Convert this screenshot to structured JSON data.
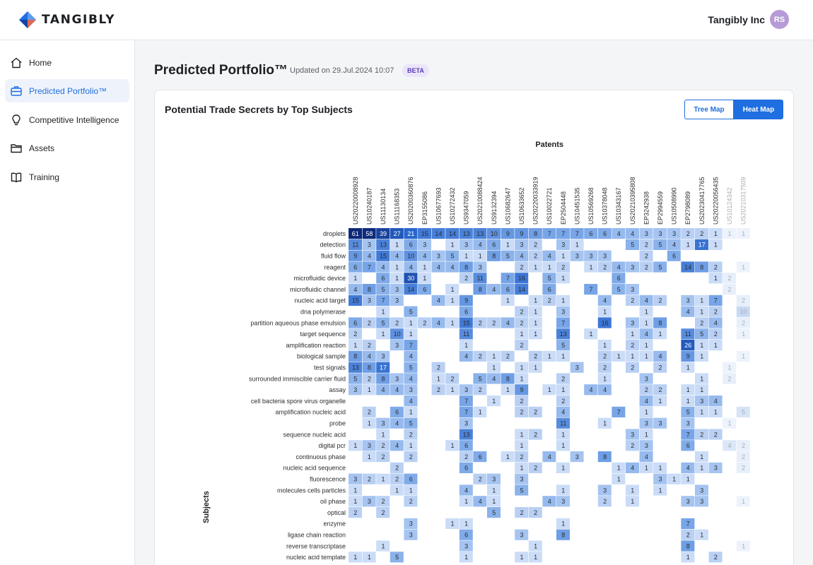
{
  "brand": {
    "name": "TANGIBLY"
  },
  "account": {
    "company": "Tangibly Inc",
    "initials": "RS"
  },
  "sidebar": {
    "items": [
      {
        "label": "Home",
        "icon": "home-icon"
      },
      {
        "label": "Predicted Portfolio™",
        "icon": "briefcase-icon",
        "active": true
      },
      {
        "label": "Competitive Intelligence",
        "icon": "lightbulb-icon"
      },
      {
        "label": "Assets",
        "icon": "folder-icon"
      },
      {
        "label": "Training",
        "icon": "book-icon"
      }
    ]
  },
  "page": {
    "title": "Predicted Portfolio™",
    "updated": "Updated on 29.Jul.2024 10:07",
    "badge": "BETA"
  },
  "card": {
    "title": "Potential Trade Secrets by Top Subjects",
    "toggle": {
      "tree_map": "Tree Map",
      "heat_map": "Heat Map",
      "selected": "Heat Map"
    }
  },
  "colors": {
    "accent": "#1f6fe0",
    "heat_low": "#e6eefb",
    "heat_high": "#0f3d8f"
  },
  "chart_data": {
    "type": "heatmap",
    "xlabel": "Patents",
    "ylabel": "Subjects",
    "x": [
      "US20220008928",
      "US10240187",
      "US11130134",
      "US11168353",
      "US20200360876",
      "EP3155086",
      "US10677693",
      "US10272432",
      "US9347059",
      "US20210088424",
      "US9132394",
      "US10682647",
      "US10633652",
      "US20220033919",
      "US10022721",
      "EP2504448",
      "US10451535",
      "US10569268",
      "US10378048",
      "US10343167",
      "US20210395808",
      "EP3242938",
      "EP2994559",
      "US10508990",
      "EP2798089",
      "US20230417765",
      "US20220056435",
      "US10124342",
      "US20210317509"
    ],
    "y": [
      "droplets",
      "detection",
      "fluid flow",
      "reagent",
      "microfluidic device",
      "microfluidic channel",
      "nucleic acid target",
      "dna polymerase",
      "partition aqueous phase emulsion",
      "target sequence",
      "amplification reaction",
      "biological sample",
      "test signals",
      "surrounded immiscible carrier fluid",
      "assay",
      "cell bacteria spore virus organelle",
      "amplification nucleic acid",
      "probe",
      "sequence nucleic acid",
      "digital pcr",
      "continuous phase",
      "nucleic acid sequence",
      "fluorescence",
      "molecules cells particles",
      "oil phase",
      "optical",
      "enzyme",
      "ligase chain reaction",
      "reverse transcriptase",
      "nucleic acid template"
    ],
    "values": [
      [
        61,
        58,
        39,
        27,
        21,
        15,
        14,
        14,
        13,
        13,
        10,
        9,
        9,
        8,
        7,
        7,
        7,
        6,
        6,
        4,
        4,
        3,
        3,
        3,
        2,
        2,
        1,
        1,
        1
      ],
      [
        11,
        3,
        13,
        1,
        6,
        3,
        null,
        1,
        3,
        4,
        6,
        1,
        3,
        2,
        null,
        3,
        1,
        null,
        null,
        null,
        5,
        2,
        5,
        4,
        1,
        17,
        1,
        null,
        null
      ],
      [
        9,
        4,
        15,
        4,
        10,
        4,
        3,
        5,
        1,
        1,
        8,
        5,
        4,
        2,
        4,
        1,
        3,
        3,
        3,
        null,
        null,
        2,
        null,
        6,
        null,
        null,
        null,
        null,
        null
      ],
      [
        6,
        7,
        4,
        1,
        4,
        1,
        4,
        4,
        8,
        3,
        null,
        null,
        2,
        1,
        1,
        2,
        null,
        1,
        2,
        4,
        3,
        2,
        5,
        null,
        14,
        8,
        2,
        null,
        1
      ],
      [
        1,
        null,
        6,
        1,
        30,
        1,
        null,
        null,
        2,
        11,
        null,
        7,
        16,
        null,
        5,
        1,
        null,
        null,
        null,
        6,
        null,
        null,
        null,
        null,
        null,
        null,
        1,
        2,
        null
      ],
      [
        4,
        8,
        5,
        3,
        14,
        6,
        null,
        1,
        null,
        8,
        4,
        6,
        14,
        null,
        6,
        null,
        null,
        7,
        null,
        5,
        3,
        null,
        null,
        null,
        null,
        null,
        null,
        2,
        null
      ],
      [
        15,
        3,
        7,
        3,
        null,
        null,
        4,
        1,
        9,
        null,
        null,
        1,
        null,
        1,
        2,
        1,
        null,
        null,
        4,
        null,
        2,
        4,
        2,
        null,
        3,
        1,
        7,
        null,
        2
      ],
      [
        null,
        null,
        1,
        null,
        5,
        null,
        null,
        null,
        6,
        null,
        null,
        null,
        2,
        1,
        null,
        3,
        null,
        null,
        1,
        null,
        null,
        1,
        null,
        null,
        4,
        1,
        2,
        null,
        10
      ],
      [
        6,
        2,
        5,
        2,
        1,
        2,
        4,
        1,
        15,
        2,
        2,
        4,
        2,
        1,
        null,
        7,
        null,
        null,
        16,
        null,
        3,
        1,
        8,
        null,
        null,
        2,
        4,
        null,
        2
      ],
      [
        2,
        null,
        1,
        10,
        1,
        null,
        null,
        null,
        11,
        null,
        null,
        null,
        1,
        1,
        null,
        13,
        null,
        1,
        null,
        null,
        1,
        4,
        1,
        null,
        11,
        5,
        2,
        null,
        1
      ],
      [
        1,
        2,
        null,
        3,
        7,
        null,
        null,
        null,
        1,
        null,
        null,
        null,
        2,
        null,
        null,
        5,
        null,
        null,
        1,
        null,
        2,
        1,
        null,
        null,
        26,
        1,
        1,
        null,
        null
      ],
      [
        8,
        4,
        3,
        null,
        4,
        null,
        null,
        null,
        4,
        2,
        1,
        2,
        null,
        2,
        1,
        1,
        null,
        null,
        2,
        1,
        1,
        1,
        4,
        null,
        9,
        1,
        null,
        null,
        1
      ],
      [
        13,
        8,
        17,
        null,
        5,
        null,
        2,
        null,
        null,
        null,
        1,
        null,
        1,
        1,
        null,
        null,
        3,
        null,
        2,
        null,
        2,
        null,
        2,
        null,
        1,
        null,
        null,
        1,
        null
      ],
      [
        5,
        2,
        8,
        3,
        4,
        null,
        1,
        2,
        null,
        5,
        4,
        8,
        1,
        null,
        null,
        2,
        null,
        null,
        1,
        null,
        null,
        3,
        null,
        null,
        null,
        1,
        null,
        2,
        null
      ],
      [
        3,
        1,
        4,
        4,
        3,
        null,
        2,
        1,
        3,
        2,
        null,
        1,
        9,
        null,
        1,
        1,
        null,
        4,
        4,
        null,
        null,
        2,
        2,
        null,
        1,
        1,
        null,
        null,
        null
      ],
      [
        null,
        null,
        null,
        null,
        4,
        null,
        null,
        null,
        7,
        null,
        1,
        null,
        2,
        null,
        null,
        2,
        null,
        null,
        null,
        null,
        null,
        4,
        1,
        null,
        1,
        3,
        4,
        null,
        null
      ],
      [
        null,
        2,
        null,
        6,
        1,
        null,
        null,
        null,
        7,
        1,
        null,
        null,
        2,
        2,
        null,
        4,
        null,
        null,
        null,
        7,
        null,
        1,
        null,
        null,
        5,
        1,
        1,
        null,
        5
      ],
      [
        null,
        1,
        3,
        4,
        5,
        null,
        null,
        null,
        3,
        null,
        null,
        null,
        null,
        null,
        null,
        11,
        null,
        null,
        1,
        null,
        null,
        3,
        3,
        null,
        3,
        null,
        null,
        1,
        null
      ],
      [
        null,
        null,
        1,
        null,
        2,
        null,
        null,
        null,
        13,
        null,
        null,
        null,
        1,
        2,
        null,
        1,
        null,
        null,
        null,
        null,
        3,
        1,
        null,
        null,
        7,
        2,
        2,
        null,
        null
      ],
      [
        1,
        3,
        2,
        4,
        1,
        null,
        null,
        1,
        6,
        null,
        null,
        null,
        1,
        null,
        null,
        1,
        null,
        null,
        null,
        null,
        2,
        3,
        null,
        null,
        6,
        null,
        null,
        4,
        2
      ],
      [
        null,
        1,
        2,
        null,
        2,
        null,
        null,
        null,
        2,
        6,
        null,
        1,
        2,
        null,
        4,
        null,
        3,
        null,
        8,
        null,
        null,
        4,
        null,
        null,
        null,
        1,
        null,
        null,
        2
      ],
      [
        null,
        null,
        null,
        2,
        null,
        null,
        null,
        null,
        6,
        null,
        null,
        null,
        1,
        2,
        null,
        1,
        null,
        null,
        null,
        1,
        4,
        1,
        1,
        null,
        4,
        1,
        3,
        null,
        2
      ],
      [
        3,
        2,
        1,
        2,
        6,
        null,
        null,
        null,
        null,
        2,
        3,
        null,
        3,
        null,
        null,
        null,
        null,
        null,
        null,
        1,
        null,
        null,
        3,
        1,
        1,
        null,
        null,
        null,
        null
      ],
      [
        1,
        null,
        null,
        1,
        1,
        null,
        null,
        null,
        4,
        null,
        1,
        null,
        5,
        null,
        null,
        1,
        null,
        null,
        3,
        null,
        1,
        null,
        1,
        null,
        null,
        3,
        null,
        null,
        null
      ],
      [
        1,
        3,
        2,
        null,
        2,
        null,
        null,
        null,
        1,
        4,
        1,
        null,
        null,
        null,
        4,
        3,
        null,
        null,
        2,
        null,
        1,
        null,
        null,
        null,
        3,
        3,
        null,
        null,
        1
      ],
      [
        2,
        null,
        2,
        null,
        null,
        null,
        null,
        null,
        null,
        null,
        5,
        null,
        2,
        2,
        null,
        null,
        null,
        null,
        null,
        null,
        null,
        null,
        null,
        null,
        null,
        null,
        null,
        null,
        null
      ],
      [
        null,
        null,
        null,
        null,
        3,
        null,
        null,
        1,
        1,
        null,
        null,
        null,
        null,
        null,
        null,
        1,
        null,
        null,
        null,
        null,
        null,
        null,
        null,
        null,
        7,
        null,
        null,
        null,
        null
      ],
      [
        null,
        null,
        null,
        null,
        3,
        null,
        null,
        null,
        6,
        null,
        null,
        null,
        3,
        null,
        null,
        8,
        null,
        null,
        null,
        null,
        null,
        null,
        null,
        null,
        2,
        1,
        null,
        null,
        null
      ],
      [
        null,
        null,
        1,
        null,
        null,
        null,
        null,
        null,
        3,
        null,
        null,
        null,
        null,
        1,
        null,
        null,
        null,
        null,
        null,
        null,
        null,
        null,
        null,
        null,
        8,
        null,
        null,
        null,
        1
      ],
      [
        1,
        1,
        null,
        5,
        null,
        null,
        null,
        null,
        1,
        null,
        null,
        null,
        1,
        1,
        null,
        null,
        null,
        null,
        null,
        null,
        null,
        null,
        null,
        null,
        1,
        null,
        2,
        null,
        null
      ]
    ]
  }
}
